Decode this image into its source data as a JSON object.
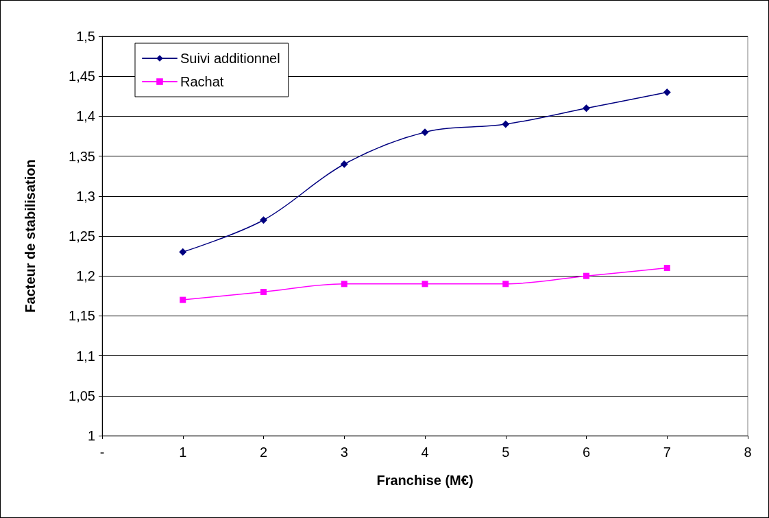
{
  "chart_data": {
    "type": "line",
    "xlabel": "Franchise (M€)",
    "ylabel": "Facteur de stabilisation",
    "x": [
      1,
      2,
      3,
      4,
      5,
      6,
      7
    ],
    "series": [
      {
        "name": "Suivi additionnel",
        "color": "#000080",
        "marker": "diamond",
        "values": [
          1.23,
          1.27,
          1.34,
          1.38,
          1.39,
          1.41,
          1.43
        ]
      },
      {
        "name": "Rachat",
        "color": "#ff00ff",
        "marker": "square",
        "values": [
          1.17,
          1.18,
          1.19,
          1.19,
          1.19,
          1.2,
          1.21
        ]
      }
    ],
    "xlim": [
      0,
      8
    ],
    "xticks": [
      {
        "value": 0,
        "label": "-"
      },
      1,
      2,
      3,
      4,
      5,
      6,
      7,
      8
    ],
    "ylim": [
      1,
      1.5
    ],
    "yticks": [
      {
        "value": 1,
        "label": "1"
      },
      {
        "value": 1.05,
        "label": "1,05"
      },
      {
        "value": 1.1,
        "label": "1,1"
      },
      {
        "value": 1.15,
        "label": "1,15"
      },
      {
        "value": 1.2,
        "label": "1,2"
      },
      {
        "value": 1.25,
        "label": "1,25"
      },
      {
        "value": 1.3,
        "label": "1,3"
      },
      {
        "value": 1.35,
        "label": "1,35"
      },
      {
        "value": 1.4,
        "label": "1,4"
      },
      {
        "value": 1.45,
        "label": "1,45"
      },
      {
        "value": 1.5,
        "label": "1,5"
      }
    ],
    "grid": "y",
    "legend": "top left",
    "line_style": "solid"
  }
}
